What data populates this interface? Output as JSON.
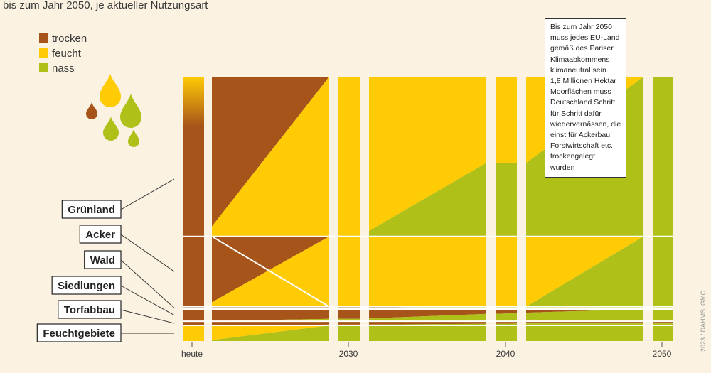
{
  "subtitle": "bis zum Jahr 2050, je aktueller Nutzungsart",
  "colors": {
    "trocken": "#a65419",
    "feucht": "#ffcb05",
    "nass": "#afc019",
    "background": "#fbf2e2"
  },
  "note": {
    "lines": [
      "Bis zum Jahr 2050",
      "muss jedes EU-Land",
      "gemäß des Pariser",
      "Klimaabkommens",
      "klimaneutral sein.",
      "1,8 Millionen Hektar",
      "Moorflächen muss",
      "Deutschland Schritt",
      "für Schritt dafür",
      "wiedervernässen, die",
      "einst für Ackerbau,",
      "Forstwirtschaft etc.",
      "trockengelegt",
      "wurden"
    ]
  },
  "credit": "2023 / DAHMS, GMC",
  "chart_data": {
    "type": "area",
    "title": "bis zum Jahr 2050, je aktueller Nutzungsart",
    "subtitle": "bis zum Jahr 2050, je aktueller Nutzungsart",
    "xlabel": "",
    "ylabel": "",
    "x_ticks": [
      "heute",
      "2030",
      "2040",
      "2050"
    ],
    "x": [
      2023,
      2024,
      2030,
      2031,
      2039,
      2040,
      2041,
      2049,
      2050
    ],
    "ylim": [
      0,
      100
    ],
    "legend": [
      {
        "key": "trocken",
        "label": "trocken"
      },
      {
        "key": "feucht",
        "label": "feucht"
      },
      {
        "key": "nass",
        "label": "nass"
      }
    ],
    "categories": [
      {
        "name": "Grünland",
        "share": 60.4,
        "trocken": [
          100,
          100,
          0,
          0,
          0,
          0,
          0,
          0,
          0
        ],
        "feucht": [
          0,
          0,
          100,
          100,
          54,
          54,
          54,
          0,
          0
        ],
        "nass": [
          0,
          0,
          0,
          0,
          46,
          46,
          46,
          100,
          100
        ]
      },
      {
        "name": "Acker",
        "share": 26.6,
        "trocken": [
          100,
          100,
          0,
          0,
          0,
          0,
          0,
          0,
          0
        ],
        "feucht": [
          0,
          0,
          100,
          100,
          100,
          100,
          100,
          0,
          0
        ],
        "nass": [
          0,
          0,
          0,
          0,
          0,
          0,
          0,
          100,
          100
        ]
      },
      {
        "name": "Wald",
        "share": 0.9,
        "trocken": [
          100,
          100,
          60,
          55,
          0,
          0,
          0,
          0,
          0
        ],
        "feucht": [
          0,
          0,
          0,
          0,
          0,
          0,
          0,
          0,
          0
        ],
        "nass": [
          0,
          0,
          40,
          45,
          100,
          100,
          100,
          100,
          100
        ]
      },
      {
        "name": "Siedlungen",
        "share": 4.6,
        "trocken": [
          100,
          100,
          80,
          80,
          40,
          40,
          30,
          0,
          0
        ],
        "feucht": [
          0,
          0,
          0,
          0,
          0,
          0,
          0,
          0,
          0
        ],
        "nass": [
          0,
          0,
          20,
          20,
          60,
          60,
          70,
          100,
          100
        ]
      },
      {
        "name": "Torfabbau",
        "share": 1.6,
        "trocken": [
          100,
          100,
          80,
          80,
          60,
          60,
          50,
          50,
          50
        ],
        "feucht": [
          0,
          0,
          0,
          0,
          0,
          0,
          0,
          0,
          0
        ],
        "nass": [
          0,
          0,
          20,
          20,
          40,
          40,
          50,
          50,
          50
        ]
      },
      {
        "name": "Feuchtgebiete",
        "share": 5.9,
        "trocken": [
          0,
          0,
          0,
          0,
          0,
          0,
          0,
          0,
          0
        ],
        "feucht": [
          100,
          100,
          0,
          0,
          0,
          0,
          0,
          0,
          0
        ],
        "nass": [
          0,
          0,
          100,
          100,
          100,
          100,
          100,
          100,
          100
        ]
      }
    ]
  }
}
